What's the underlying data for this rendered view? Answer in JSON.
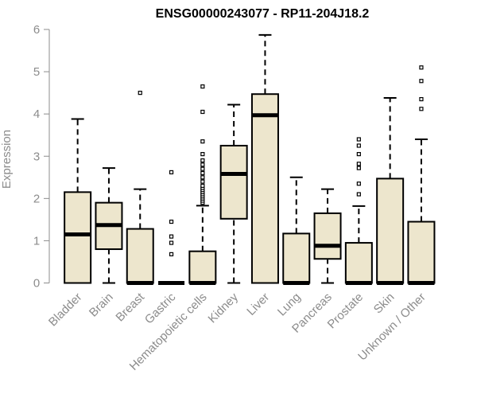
{
  "chart_data": {
    "type": "boxplot",
    "title": "ENSG00000243077 - RP11-204J18.2",
    "xlabel": "",
    "ylabel": "Expression",
    "ylim": [
      0,
      6
    ],
    "yticks": [
      "0",
      "1",
      "2",
      "3",
      "4",
      "5",
      "6"
    ],
    "box_fill": "#ede6cd",
    "categories": [
      "Bladder",
      "Brain",
      "Breast",
      "Gastric",
      "Hematopoietic cells",
      "Kidney",
      "Liver",
      "Lung",
      "Pancreas",
      "Prostate",
      "Skin",
      "Unknown / Other"
    ],
    "boxes": [
      {
        "min": 0,
        "q1": 0,
        "median": 1.15,
        "q3": 2.15,
        "max": 3.88,
        "outliers": []
      },
      {
        "min": 0,
        "q1": 0.8,
        "median": 1.37,
        "q3": 1.9,
        "max": 2.72,
        "outliers": []
      },
      {
        "min": 0,
        "q1": 0,
        "median": 0,
        "q3": 1.28,
        "max": 2.22,
        "outliers": [
          4.5
        ]
      },
      {
        "min": 0,
        "q1": 0,
        "median": 0,
        "q3": 0,
        "max": 0,
        "outliers": [
          0.68,
          0.95,
          1.1,
          1.45,
          2.62
        ]
      },
      {
        "min": 0,
        "q1": 0,
        "median": 0,
        "q3": 0.75,
        "max": 1.83,
        "outliers": [
          1.9,
          1.95,
          2.0,
          2.05,
          2.1,
          2.15,
          2.2,
          2.25,
          2.3,
          2.4,
          2.5,
          2.6,
          2.7,
          2.8,
          2.9,
          3.05,
          3.35,
          4.05,
          4.65
        ]
      },
      {
        "min": 0,
        "q1": 1.52,
        "median": 2.58,
        "q3": 3.25,
        "max": 4.22,
        "outliers": []
      },
      {
        "min": 0,
        "q1": 0,
        "median": 3.97,
        "q3": 4.47,
        "max": 5.87,
        "outliers": []
      },
      {
        "min": 0,
        "q1": 0,
        "median": 0,
        "q3": 1.17,
        "max": 2.5,
        "outliers": []
      },
      {
        "min": 0,
        "q1": 0.57,
        "median": 0.88,
        "q3": 1.65,
        "max": 2.22,
        "outliers": []
      },
      {
        "min": 0,
        "q1": 0,
        "median": 0,
        "q3": 0.95,
        "max": 1.82,
        "outliers": [
          2.1,
          2.35,
          2.72,
          2.82,
          3.05,
          3.25,
          3.4
        ]
      },
      {
        "min": 0,
        "q1": 0,
        "median": 0,
        "q3": 2.47,
        "max": 4.38,
        "outliers": []
      },
      {
        "min": 0,
        "q1": 0,
        "median": 0,
        "q3": 1.45,
        "max": 3.4,
        "outliers": [
          4.12,
          4.35,
          4.78,
          5.1
        ]
      }
    ]
  }
}
